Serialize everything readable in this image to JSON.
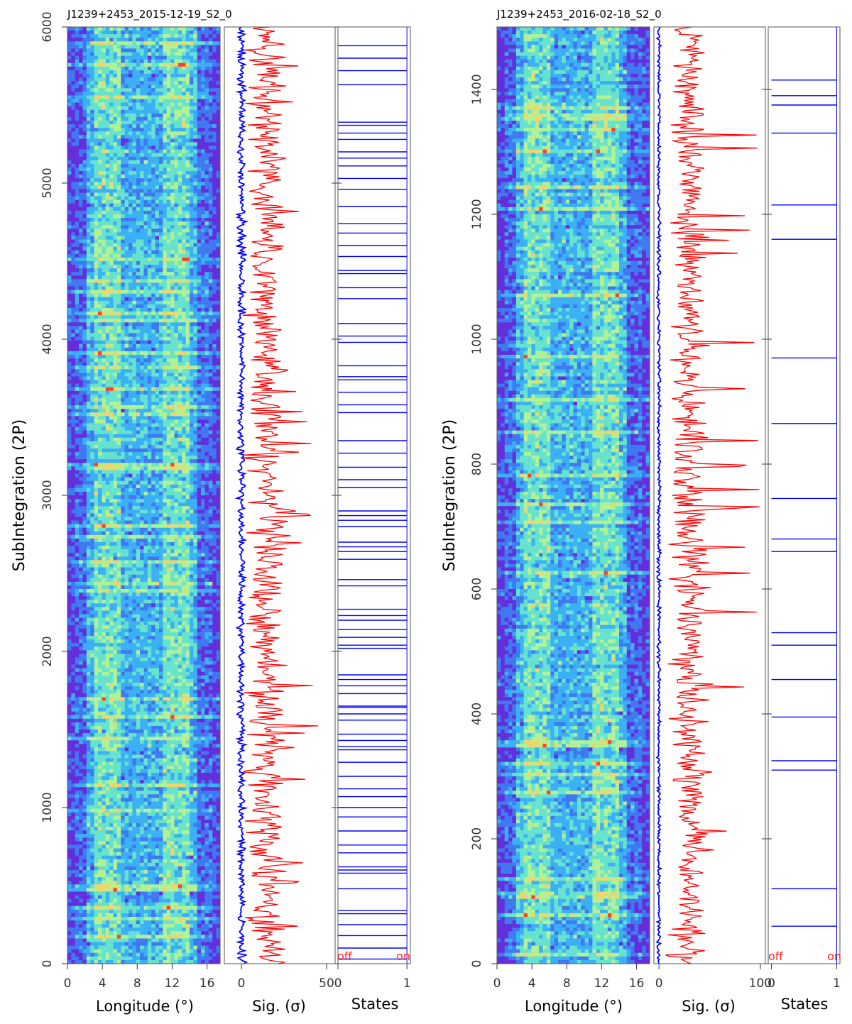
{
  "chart_data": [
    {
      "type": "heatmap",
      "title": "J1239+2453_2015-12-19_S2_0",
      "ylabel": "SubIntegration (2P)",
      "ylim": [
        0,
        6000
      ],
      "y_ticks": [
        "0",
        "1000",
        "2000",
        "3000",
        "4000",
        "5000",
        "6000"
      ],
      "panels": [
        {
          "name": "pulse-stack",
          "xlabel": "Longitude (°)",
          "xlim": [
            0,
            17.5
          ],
          "x_ticks": [
            "0",
            "4",
            "8",
            "12",
            "16"
          ],
          "colormap": [
            "#5a2bd8",
            "#3a6ef0",
            "#36a8f5",
            "#5ee0c8",
            "#aaf08a",
            "#f0d060",
            "#ff3a20"
          ],
          "bright_bands_longitude": [
            [
              3,
              6
            ],
            [
              11,
              14
            ]
          ]
        },
        {
          "name": "significance",
          "xlabel": "Sig. (σ)",
          "xlim": [
            -10,
            55
          ],
          "x_ticks": [
            "0",
            "50"
          ],
          "series": [
            {
              "color": "#0000ff",
              "typical": 0,
              "spread": 2
            },
            {
              "color": "#ff0000",
              "typical": 15,
              "spread": 10,
              "peak": 45
            }
          ]
        },
        {
          "name": "states",
          "xlabel": "States",
          "xlim": [
            0,
            1.05
          ],
          "x_ticks": [
            "0",
            "1"
          ],
          "state_labels": [
            "off",
            "on"
          ],
          "off_positions": [
            30,
            100,
            180,
            250,
            320,
            340,
            480,
            580,
            600,
            620,
            710,
            760,
            850,
            940,
            1000,
            1070,
            1120,
            1200,
            1290,
            1370,
            1390,
            1430,
            1470,
            1560,
            1600,
            1640,
            1650,
            1730,
            1780,
            1820,
            1850,
            2020,
            2040,
            2090,
            2140,
            2200,
            2230,
            2270,
            2420,
            2460,
            2590,
            2640,
            2670,
            2700,
            2800,
            2840,
            2870,
            2900,
            3050,
            3100,
            3180,
            3270,
            3350,
            3530,
            3580,
            3660,
            3740,
            3760,
            3830,
            3980,
            4020,
            4100,
            4260,
            4330,
            4420,
            4440,
            4530,
            4600,
            4680,
            4740,
            4850,
            4960,
            5030,
            5110,
            5160,
            5200,
            5280,
            5320,
            5370,
            5390,
            5630,
            5720,
            5800,
            5880
          ],
          "color": "#0000ff"
        }
      ]
    },
    {
      "type": "heatmap",
      "title": "J1239+2453_2016-02-18_S2_0",
      "ylabel": "SubIntegration (2P)",
      "ylim": [
        0,
        1500
      ],
      "y_ticks": [
        "0",
        "200",
        "400",
        "600",
        "800",
        "1000",
        "1200",
        "1400"
      ],
      "panels": [
        {
          "name": "pulse-stack",
          "xlabel": "Longitude (°)",
          "xlim": [
            0,
            17.5
          ],
          "x_ticks": [
            "0",
            "4",
            "8",
            "12",
            "16"
          ],
          "colormap": [
            "#5a2bd8",
            "#3a6ef0",
            "#36a8f5",
            "#5ee0c8",
            "#aaf08a",
            "#f0d060",
            "#ff3a20"
          ],
          "bright_bands_longitude": [
            [
              3,
              6
            ],
            [
              11,
              14
            ]
          ]
        },
        {
          "name": "significance",
          "xlabel": "Sig. (σ)",
          "xlim": [
            -5,
            105
          ],
          "x_ticks": [
            "0",
            "100"
          ],
          "series": [
            {
              "color": "#0000ff",
              "typical": 0,
              "spread": 1.5
            },
            {
              "color": "#ff0000",
              "typical": 30,
              "spread": 15,
              "peak": 100
            }
          ]
        },
        {
          "name": "states",
          "xlabel": "States",
          "xlim": [
            -0.05,
            1.05
          ],
          "x_ticks": [
            "0",
            "1"
          ],
          "state_labels": [
            "off",
            "on"
          ],
          "off_positions": [
            60,
            120,
            310,
            325,
            395,
            455,
            510,
            530,
            660,
            680,
            745,
            865,
            970,
            1160,
            1215,
            1330,
            1375,
            1390,
            1415
          ],
          "color": "#0000ff"
        }
      ]
    }
  ]
}
